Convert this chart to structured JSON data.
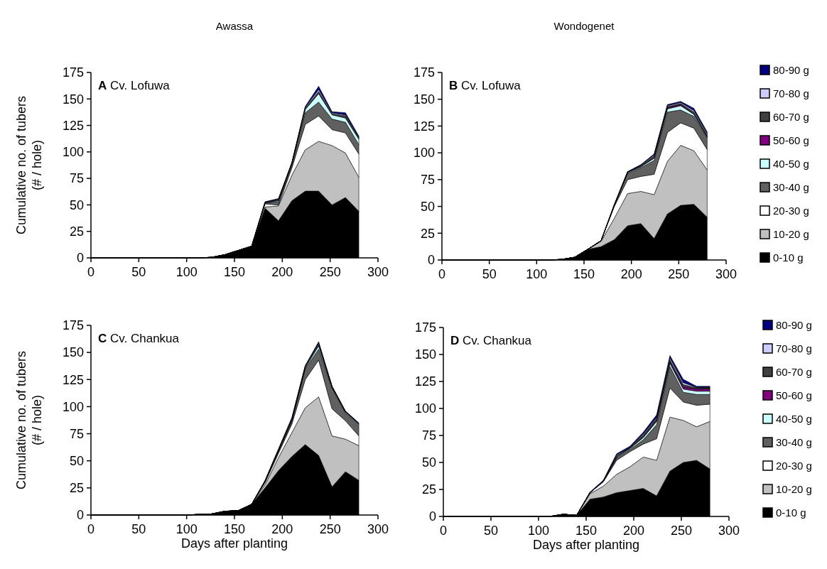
{
  "chart_data": [
    {
      "type": "area",
      "stacked": true,
      "subtitle": "Awassa",
      "title": "A Cv. Lofuwa",
      "ylabel": "Cumulative no. of tubers\n(# / hole)",
      "x": [
        0,
        14,
        28,
        42,
        56,
        70,
        84,
        98,
        112,
        126,
        140,
        154,
        168,
        182,
        196,
        210,
        224,
        238,
        252,
        266,
        280
      ],
      "xlim": [
        0,
        300
      ],
      "xticks": [
        0,
        50,
        100,
        150,
        200,
        250,
        300
      ],
      "ylim": [
        0,
        175
      ],
      "yticks": [
        0,
        25,
        50,
        75,
        100,
        125,
        150,
        175
      ],
      "grid": false,
      "legend": false,
      "series": [
        {
          "color": "#000000",
          "values": [
            0,
            0,
            0,
            0,
            0,
            0,
            0,
            0,
            0,
            0.5,
            3,
            7,
            11,
            47,
            35,
            54,
            63,
            63,
            50,
            57,
            44
          ]
        },
        {
          "color": "#c0c0c0",
          "values": [
            0,
            0,
            0,
            0,
            0,
            0,
            0,
            0,
            0,
            0,
            0,
            0,
            0,
            1,
            14,
            24,
            39,
            47,
            56,
            42,
            32
          ]
        },
        {
          "color": "#ffffff",
          "values": [
            0,
            0,
            0,
            0,
            0,
            0,
            0,
            0,
            0,
            0,
            0,
            0,
            0,
            3,
            1,
            7,
            24,
            24,
            15,
            19,
            22
          ]
        },
        {
          "color": "#606060",
          "values": [
            0,
            0,
            0,
            0,
            0,
            0,
            0,
            0,
            0,
            0,
            0,
            0,
            0,
            1,
            3,
            3,
            11,
            13,
            10,
            10,
            9
          ]
        },
        {
          "color": "#ccffff",
          "values": [
            0,
            0,
            0,
            0,
            0,
            0,
            0,
            0,
            0,
            0,
            0,
            0,
            0,
            0,
            1,
            1,
            3,
            8,
            4,
            4,
            5
          ]
        },
        {
          "color": "#404040",
          "values": [
            0,
            0,
            0,
            0,
            0,
            0,
            0,
            0,
            0,
            0,
            0,
            0,
            0,
            0.5,
            1,
            0.5,
            1,
            2,
            1,
            2,
            1
          ]
        },
        {
          "color": "#ccccff",
          "values": [
            0,
            0,
            0,
            0,
            0,
            0,
            0,
            0,
            0,
            0,
            0,
            0,
            0,
            0,
            0.5,
            0,
            1,
            2,
            1,
            1,
            1
          ]
        },
        {
          "color": "#000080",
          "values": [
            0,
            0,
            0,
            0,
            0,
            0,
            0,
            0,
            0,
            0,
            0,
            0,
            0,
            0.5,
            0.5,
            0.5,
            1,
            3,
            1,
            2,
            1
          ]
        }
      ]
    },
    {
      "type": "area",
      "stacked": true,
      "subtitle": "Wondogenet",
      "title": "B Cv. Lofuwa",
      "x": [
        0,
        14,
        28,
        42,
        56,
        70,
        84,
        98,
        112,
        126,
        140,
        154,
        168,
        182,
        196,
        210,
        224,
        238,
        252,
        266,
        280
      ],
      "xlim": [
        0,
        300
      ],
      "xticks": [
        0,
        50,
        100,
        150,
        200,
        250,
        300
      ],
      "ylim": [
        0,
        175
      ],
      "yticks": [
        0,
        25,
        50,
        75,
        100,
        125,
        150,
        175
      ],
      "grid": false,
      "legend": "right",
      "series": [
        {
          "name": "0-10 g",
          "color": "#000000",
          "values": [
            0,
            0,
            0,
            0,
            0,
            0,
            0,
            0,
            0,
            0.5,
            2.5,
            10,
            12.5,
            19,
            32,
            34,
            20,
            43,
            51,
            52,
            40
          ]
        },
        {
          "name": "10-20 g",
          "color": "#c0c0c0",
          "values": [
            0,
            0,
            0,
            0,
            0,
            0,
            0,
            0,
            0,
            0,
            0,
            0,
            5,
            20,
            30,
            30,
            41,
            49,
            56,
            50,
            44
          ]
        },
        {
          "name": "20-30 g",
          "color": "#ffffff",
          "values": [
            0,
            0,
            0,
            0,
            0,
            0,
            0,
            0,
            0,
            0,
            0,
            0,
            0.5,
            11,
            13,
            14,
            19,
            27,
            21,
            21,
            19
          ]
        },
        {
          "name": "30-40 g",
          "color": "#606060",
          "values": [
            0,
            0,
            0,
            0,
            0,
            0,
            0,
            0,
            0,
            0,
            0,
            0,
            0,
            1,
            6,
            8,
            13,
            19,
            12,
            11,
            11
          ]
        },
        {
          "name": "40-50 g",
          "color": "#ccffff",
          "values": [
            0,
            0,
            0,
            0,
            0,
            0,
            0,
            0,
            0,
            0,
            0,
            0,
            0,
            0,
            1,
            1,
            2,
            3,
            4,
            2,
            1
          ]
        },
        {
          "name": "50-60 g",
          "color": "#800080",
          "values": [
            0,
            0,
            0,
            0,
            0,
            0,
            0,
            0,
            0,
            0,
            0,
            0,
            0,
            0,
            0,
            0,
            0.5,
            1,
            1,
            0,
            0
          ]
        },
        {
          "name": "60-70 g",
          "color": "#404040",
          "values": [
            0,
            0,
            0,
            0,
            0,
            0,
            0,
            0,
            0,
            0,
            0,
            0,
            0,
            0.5,
            0,
            1,
            1.5,
            1,
            1,
            2,
            1.5
          ]
        },
        {
          "name": "70-80 g",
          "color": "#ccccff",
          "values": [
            0,
            0,
            0,
            0,
            0,
            0,
            0,
            0,
            0,
            0,
            0,
            0,
            0,
            0,
            0,
            0.5,
            1,
            1,
            1,
            1.5,
            1.5
          ]
        },
        {
          "name": "80-90 g",
          "color": "#000080",
          "values": [
            0,
            0,
            0,
            0,
            0,
            0,
            0,
            0,
            0,
            0,
            0,
            0,
            0,
            0.5,
            0.5,
            0.5,
            1,
            1,
            1,
            2,
            1.5
          ]
        }
      ]
    },
    {
      "type": "area",
      "stacked": true,
      "title": "C Cv. Chankua",
      "ylabel": "Cumulative no. of tubers\n(# / hole)",
      "xlabel": "Days after planting",
      "x": [
        0,
        14,
        28,
        42,
        56,
        70,
        84,
        98,
        112,
        126,
        140,
        154,
        168,
        182,
        196,
        210,
        224,
        238,
        252,
        266,
        280
      ],
      "xlim": [
        0,
        300
      ],
      "xticks": [
        0,
        50,
        100,
        150,
        200,
        250,
        300
      ],
      "ylim": [
        0,
        175
      ],
      "yticks": [
        0,
        25,
        50,
        75,
        100,
        125,
        150,
        175
      ],
      "grid": false,
      "legend": false,
      "series": [
        {
          "color": "#000000",
          "values": [
            0,
            0,
            0,
            0,
            0,
            0,
            0,
            0,
            0.5,
            1,
            3.5,
            4,
            10,
            25,
            41,
            54,
            65,
            55,
            26,
            40,
            32
          ]
        },
        {
          "color": "#c0c0c0",
          "values": [
            0,
            0,
            0,
            0,
            0,
            0,
            0,
            0,
            0,
            0,
            0,
            0,
            0,
            3,
            12,
            22,
            34,
            54,
            47,
            30,
            32
          ]
        },
        {
          "color": "#ffffff",
          "values": [
            0,
            0,
            0,
            0,
            0,
            0,
            0,
            0,
            0,
            0,
            0,
            0,
            0,
            2,
            4,
            8,
            26,
            34,
            25,
            17,
            9
          ]
        },
        {
          "color": "#606060",
          "values": [
            0,
            0,
            0,
            0,
            0,
            0,
            0,
            0,
            0,
            0,
            0,
            0,
            0,
            1,
            2,
            3,
            10,
            10,
            19,
            7,
            9
          ]
        },
        {
          "color": "#ccffff",
          "values": [
            0,
            0,
            0,
            0,
            0,
            0,
            0,
            0,
            0,
            0,
            0,
            0,
            0,
            0,
            0,
            0,
            1,
            3,
            1,
            1,
            1
          ]
        },
        {
          "color": "#404040",
          "values": [
            0,
            0,
            0,
            0,
            0,
            0,
            0,
            0,
            0,
            0,
            0,
            0,
            0,
            0.5,
            1,
            1,
            1,
            1.5,
            0.5,
            0.5,
            1
          ]
        },
        {
          "color": "#ccccff",
          "values": [
            0,
            0,
            0,
            0,
            0,
            0,
            0,
            0,
            0,
            0,
            0,
            0,
            0,
            0,
            0.5,
            1,
            0.5,
            1,
            0,
            0,
            0.5
          ]
        },
        {
          "color": "#000080",
          "values": [
            0,
            0,
            0,
            0,
            0,
            0,
            0,
            0,
            0,
            0,
            0,
            0,
            0,
            0.5,
            0.5,
            1,
            0.5,
            1.5,
            0.5,
            0.5,
            0.5
          ]
        }
      ]
    },
    {
      "type": "area",
      "stacked": true,
      "title": "D Cv. Chankua",
      "xlabel": "Days after planting",
      "x": [
        0,
        14,
        28,
        42,
        56,
        70,
        84,
        98,
        112,
        126,
        140,
        154,
        168,
        182,
        196,
        210,
        224,
        238,
        252,
        266,
        280
      ],
      "xlim": [
        0,
        300
      ],
      "xticks": [
        0,
        50,
        100,
        150,
        200,
        250,
        300
      ],
      "ylim": [
        0,
        175
      ],
      "yticks": [
        0,
        25,
        50,
        75,
        100,
        125,
        150,
        175
      ],
      "grid": false,
      "legend": "right",
      "series": [
        {
          "name": "0-10 g",
          "color": "#000000",
          "values": [
            0,
            0,
            0,
            0,
            0,
            0,
            0,
            0,
            0,
            2,
            1,
            16,
            18,
            22,
            24,
            26,
            19,
            42,
            50,
            52,
            44
          ]
        },
        {
          "name": "10-20 g",
          "color": "#c0c0c0",
          "values": [
            0,
            0,
            0,
            0,
            0,
            0,
            0,
            0,
            0,
            0,
            0,
            5,
            10,
            17,
            22,
            29,
            33,
            50,
            39,
            31,
            44
          ]
        },
        {
          "name": "20-30 g",
          "color": "#ffffff",
          "values": [
            0,
            0,
            0,
            0,
            0,
            0,
            0,
            0,
            0,
            0,
            0,
            1,
            4,
            13,
            14,
            12,
            20,
            27,
            17,
            20,
            16
          ]
        },
        {
          "name": "30-40 g",
          "color": "#606060",
          "values": [
            0,
            0,
            0,
            0,
            0,
            0,
            0,
            0,
            0,
            0,
            0,
            0,
            0.5,
            2,
            2,
            4,
            13,
            20,
            9,
            10,
            9
          ]
        },
        {
          "name": "40-50 g",
          "color": "#ccffff",
          "values": [
            0,
            0,
            0,
            0,
            0,
            0,
            0,
            0,
            0,
            0,
            0,
            0,
            0,
            1,
            1,
            2,
            3,
            3,
            3,
            3,
            3
          ]
        },
        {
          "name": "50-60 g",
          "color": "#800080",
          "values": [
            0,
            0,
            0,
            0,
            0,
            0,
            0,
            0,
            0,
            0,
            0,
            0,
            0,
            0,
            0,
            0.5,
            1,
            1,
            2,
            2,
            2
          ]
        },
        {
          "name": "60-70 g",
          "color": "#404040",
          "values": [
            0,
            0,
            0,
            0,
            0,
            0,
            0,
            0,
            0,
            0,
            0,
            0,
            0,
            1,
            1,
            2,
            2,
            2,
            2,
            1,
            1
          ]
        },
        {
          "name": "70-80 g",
          "color": "#ccccff",
          "values": [
            0,
            0,
            0,
            0,
            0,
            0,
            0,
            0,
            0,
            0,
            0,
            0,
            0,
            1,
            0,
            1,
            1,
            2,
            2,
            0.5,
            0.5
          ]
        },
        {
          "name": "80-90 g",
          "color": "#000080",
          "values": [
            0,
            0,
            0,
            0,
            0,
            0,
            0,
            0,
            0,
            0,
            0,
            0.5,
            1,
            1,
            1,
            1.5,
            2,
            2,
            3,
            1,
            1
          ]
        }
      ]
    }
  ]
}
